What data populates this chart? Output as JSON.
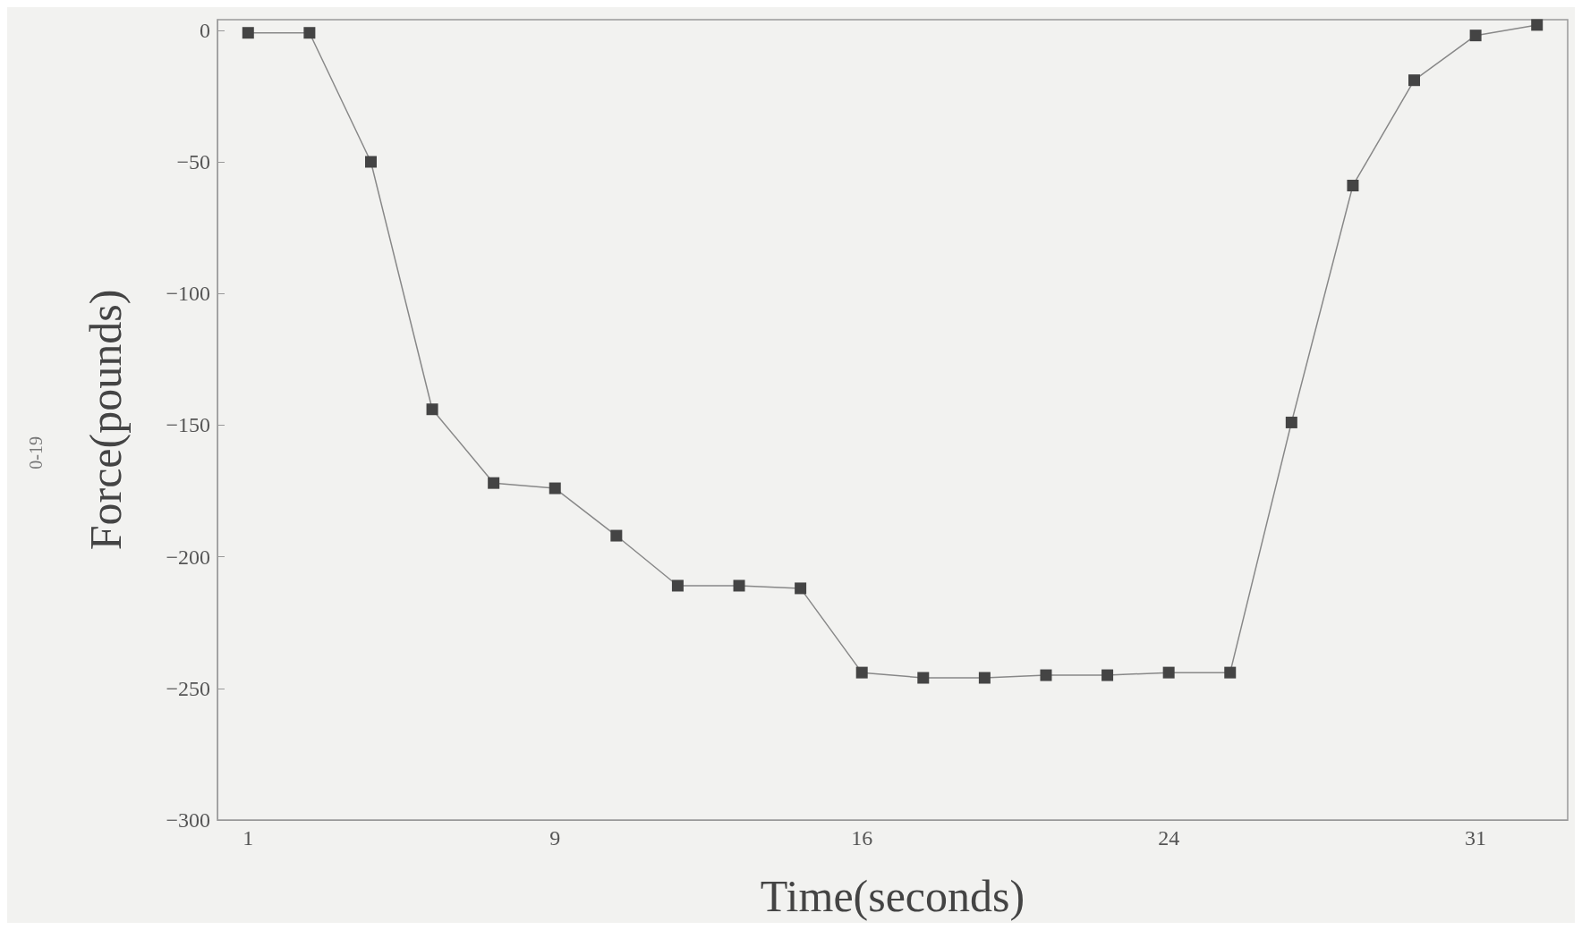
{
  "chart_data": {
    "type": "line",
    "xlabel": "Time(seconds)",
    "ylabel": "Force(pounds)",
    "categories": [
      "1",
      null,
      null,
      null,
      null,
      "9",
      null,
      null,
      null,
      null,
      "16",
      null,
      null,
      null,
      null,
      "24",
      null,
      null,
      null,
      null,
      "31",
      null
    ],
    "series": [
      {
        "color": "#444444",
        "values": [
          -1,
          -1,
          -50,
          -144,
          -172,
          -174,
          -192,
          -211,
          -211,
          -212,
          -244,
          -246,
          -246,
          -245,
          -245,
          -244,
          -244,
          -149,
          -59,
          -19,
          -2,
          2
        ]
      }
    ],
    "ylim": [
      -300,
      4
    ],
    "yticks": [
      -300,
      -250,
      -200,
      -150,
      -100,
      -50,
      0
    ],
    "grid": false,
    "marker": "square",
    "line_style": "solid",
    "annotations": [
      "0-19"
    ]
  }
}
